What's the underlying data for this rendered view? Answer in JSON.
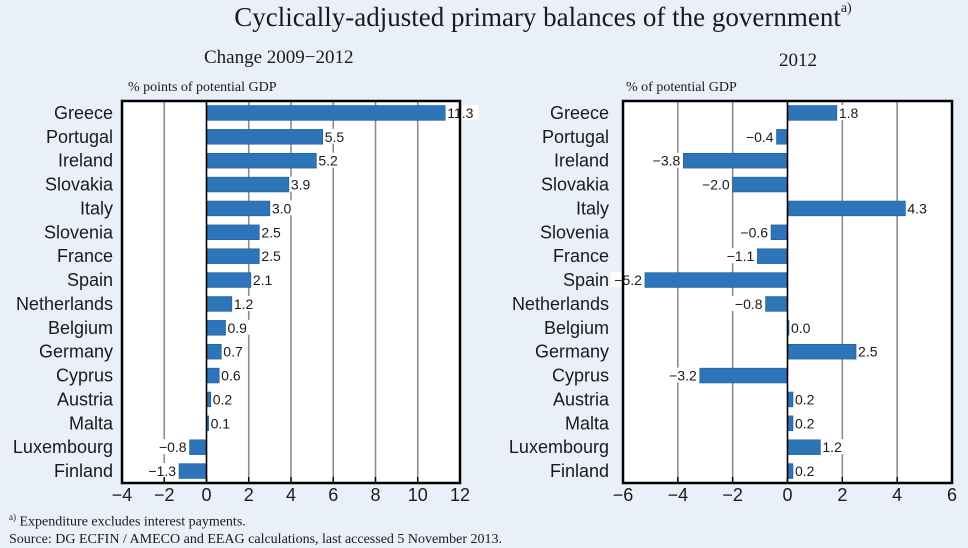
{
  "header": {
    "title": "Cyclically-adjusted primary balances of the government",
    "title_note": "a)"
  },
  "footer": {
    "footnote_marker": "a)",
    "footnote_text": "Expenditure excludes interest payments.",
    "source": "Source: DG ECFIN / AMECO and EEAG calculations, last accessed 5 November 2013."
  },
  "style": {
    "bar_color": "#2e74b8",
    "background": "#e9f0fa"
  },
  "chart_data": [
    {
      "type": "bar",
      "orientation": "horizontal",
      "title": "Change 2009−2012",
      "ylabel_top": "% points of potential GDP",
      "xlabel": "",
      "categories": [
        "Greece",
        "Portugal",
        "Ireland",
        "Slovakia",
        "Italy",
        "Slovenia",
        "France",
        "Spain",
        "Netherlands",
        "Belgium",
        "Germany",
        "Cyprus",
        "Austria",
        "Malta",
        "Luxembourg",
        "Finland"
      ],
      "values": [
        11.3,
        5.5,
        5.2,
        3.9,
        3.0,
        2.5,
        2.5,
        2.1,
        1.2,
        0.9,
        0.7,
        0.6,
        0.2,
        0.1,
        -0.8,
        -1.3
      ],
      "value_labels": [
        "11.3",
        "5.5",
        "5.2",
        "3.9",
        "3.0",
        "2.5",
        "2.5",
        "2.1",
        "1.2",
        "0.9",
        "0.7",
        "0.6",
        "0.2",
        "0.1",
        "−0.8",
        "−1.3"
      ],
      "xlim": [
        -4,
        12
      ],
      "xticks": [
        -4,
        -2,
        0,
        2,
        4,
        6,
        8,
        10,
        12
      ],
      "xtick_labels": [
        "−4",
        "−2",
        "0",
        "2",
        "4",
        "6",
        "8",
        "10",
        "12"
      ],
      "grid": true
    },
    {
      "type": "bar",
      "orientation": "horizontal",
      "title": "2012",
      "ylabel_top": "% of potential GDP",
      "xlabel": "",
      "categories": [
        "Greece",
        "Portugal",
        "Ireland",
        "Slovakia",
        "Italy",
        "Slovenia",
        "France",
        "Spain",
        "Netherlands",
        "Belgium",
        "Germany",
        "Cyprus",
        "Austria",
        "Malta",
        "Luxembourg",
        "Finland"
      ],
      "values": [
        1.8,
        -0.4,
        -3.8,
        -2.0,
        4.3,
        -0.6,
        -1.1,
        -5.2,
        -0.8,
        0.0,
        2.5,
        -3.2,
        0.2,
        0.2,
        1.2,
        0.2
      ],
      "value_labels": [
        "1.8",
        "−0.4",
        "−3.8",
        "−2.0",
        "4.3",
        "−0.6",
        "−1.1",
        "−5.2",
        "−0.8",
        "0.0",
        "2.5",
        "−3.2",
        "0.2",
        "0.2",
        "1.2",
        "0.2"
      ],
      "xlim": [
        -6,
        6
      ],
      "xticks": [
        -6,
        -4,
        -2,
        0,
        2,
        4,
        6
      ],
      "xtick_labels": [
        "−6",
        "−4",
        "−2",
        "0",
        "2",
        "4",
        "6"
      ],
      "grid": true
    }
  ]
}
